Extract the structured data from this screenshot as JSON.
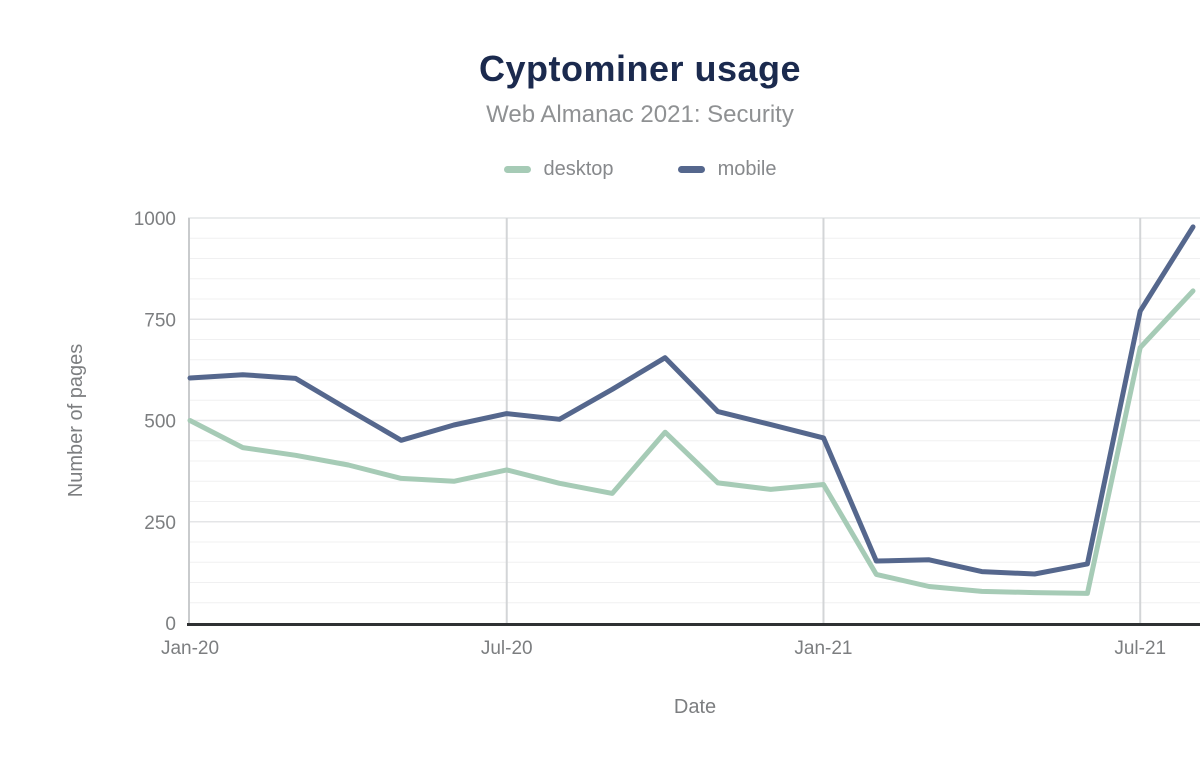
{
  "chart_data": {
    "type": "line",
    "title": "Cyptominer usage",
    "subtitle": "Web Almanac 2021: Security",
    "xlabel": "Date",
    "ylabel": "Number of pages",
    "ylim": [
      0,
      1000
    ],
    "ytick_step": 250,
    "minor_grid_step": 50,
    "ytick_labels": [
      "0",
      "250",
      "500",
      "750",
      "1000"
    ],
    "xtick_labels": [
      "Jan-20",
      "Jul-20",
      "Jan-21",
      "Jul-21"
    ],
    "xtick_indices": [
      0,
      6,
      12,
      18
    ],
    "grid": true,
    "legend_position": "top",
    "categories": [
      "Jan-20",
      "Feb-20",
      "Mar-20",
      "Apr-20",
      "May-20",
      "Jun-20",
      "Jul-20",
      "Aug-20",
      "Sep-20",
      "Oct-20",
      "Nov-20",
      "Dec-20",
      "Jan-21",
      "Feb-21",
      "Mar-21",
      "Apr-21",
      "May-21",
      "Jun-21",
      "Jul-21",
      "Aug-21"
    ],
    "series": [
      {
        "name": "desktop",
        "color": "#a6cbb6",
        "values": [
          500,
          433,
          414,
          390,
          357,
          350,
          378,
          345,
          320,
          471,
          346,
          330,
          342,
          120,
          90,
          78,
          75,
          73,
          680,
          820
        ]
      },
      {
        "name": "mobile",
        "color": "#55678d",
        "values": [
          605,
          613,
          604,
          527,
          451,
          489,
          517,
          503,
          577,
          655,
          522,
          490,
          457,
          153,
          156,
          127,
          121,
          146,
          770,
          978
        ]
      }
    ]
  },
  "colors": {
    "title": "#1b2a4e",
    "subtitle": "#8f9193",
    "legend_text": "#87898c",
    "tick_label": "#7c7e80",
    "axis_title": "#7c7e80",
    "axis_line": "#2f3133",
    "y_axis_line": "#c9cbcd",
    "vertical_gridline": "#d3d5d7",
    "minor_gridline": "#f0f0f1",
    "major_gridline": "#e4e5e7",
    "background": "#ffffff"
  }
}
